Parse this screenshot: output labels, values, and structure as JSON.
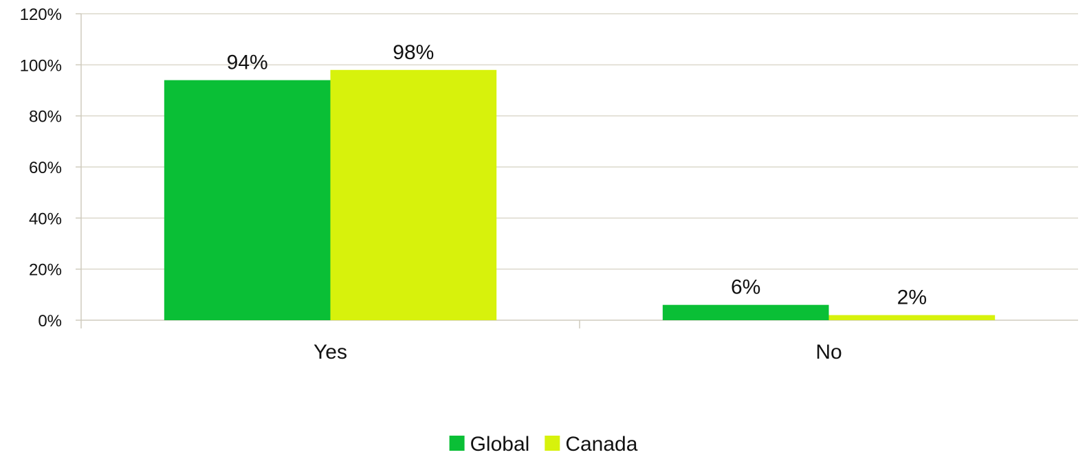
{
  "chart_data": {
    "type": "bar",
    "categories": [
      "Yes",
      "No"
    ],
    "series": [
      {
        "name": "Global",
        "values": [
          94,
          6
        ],
        "labels": [
          "94%",
          "6%"
        ],
        "color": "#0abf36"
      },
      {
        "name": "Canada",
        "values": [
          98,
          2
        ],
        "labels": [
          "98%",
          "2%"
        ],
        "color": "#d7f20c"
      }
    ],
    "yticks": [
      "0%",
      "20%",
      "40%",
      "60%",
      "80%",
      "100%",
      "120%"
    ],
    "ylim": [
      0,
      120
    ],
    "grid": true,
    "legend_position": "bottom"
  }
}
